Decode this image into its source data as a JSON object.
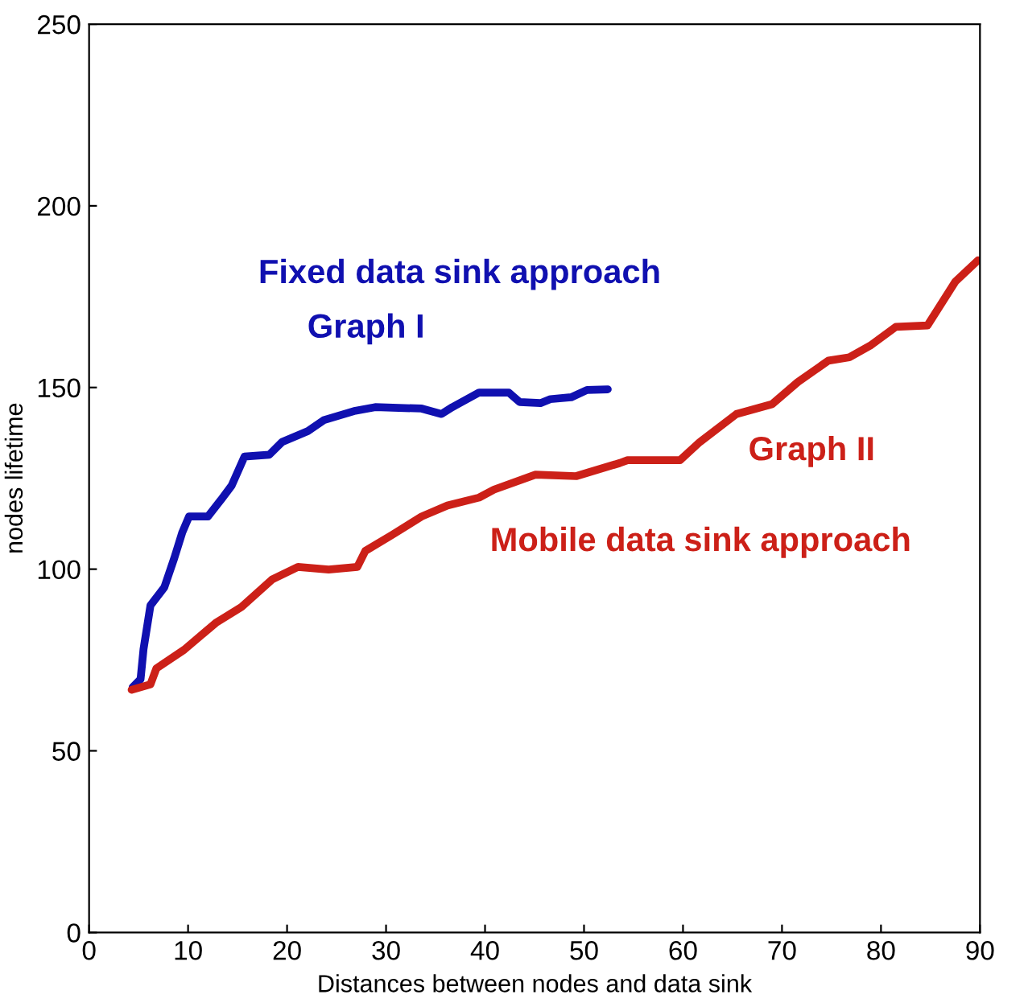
{
  "chart_data": {
    "type": "line",
    "xlabel": "Distances between nodes and data sink",
    "ylabel": "nodes lifetime",
    "xlim": [
      0,
      90
    ],
    "ylim": [
      0,
      250
    ],
    "xticks": [
      0,
      10,
      20,
      30,
      40,
      50,
      60,
      70,
      80,
      90
    ],
    "yticks": [
      0,
      50,
      100,
      150,
      200,
      250
    ],
    "grid": false,
    "series": [
      {
        "color": "#1010b0",
        "x": [
          4.4,
          5.2,
          5.5,
          6.2,
          7.6,
          8.6,
          9.4,
          10.1,
          12.0,
          13.3,
          14.4,
          15.7,
          18.2,
          19.5,
          22.1,
          23.7,
          26.9,
          28.9,
          33.6,
          35.6,
          36.7,
          39.4,
          42.4,
          43.5,
          45.6,
          46.6,
          48.7,
          50.3,
          52.4
        ],
        "values": [
          67.5,
          69.7,
          78,
          90,
          95,
          103,
          110,
          114.5,
          114.5,
          119,
          123,
          131,
          131.5,
          135,
          138,
          141,
          143.6,
          144.6,
          144.2,
          142.7,
          144.6,
          148.6,
          148.6,
          146,
          145.7,
          146.8,
          147.3,
          149.3,
          149.5
        ]
      },
      {
        "color": "#cc2018",
        "x": [
          4.3,
          6.2,
          6.8,
          9.6,
          12.8,
          15.4,
          18.5,
          21.1,
          24.2,
          27.1,
          27.9,
          30.6,
          33.6,
          36.2,
          39.4,
          40.9,
          45.1,
          49.2,
          53.6,
          54.4,
          59.7,
          61.7,
          65.4,
          69.0,
          71.6,
          74.7,
          76.8,
          78.9,
          81.5,
          84.7,
          87.5,
          89.8
        ],
        "values": [
          66.8,
          68.3,
          72.7,
          77.8,
          85.2,
          89.6,
          97.2,
          100.6,
          99.9,
          100.6,
          105,
          109.4,
          114.5,
          117.5,
          119.7,
          121.9,
          126,
          125.6,
          129.2,
          130,
          130,
          135,
          142.7,
          145.4,
          151.5,
          157.4,
          158.3,
          161.5,
          166.7,
          167.1,
          179.1,
          185
        ]
      }
    ],
    "annotations": [
      "Fixed data sink approach",
      "Graph I",
      "Graph II",
      "Mobile data sink approach"
    ]
  }
}
